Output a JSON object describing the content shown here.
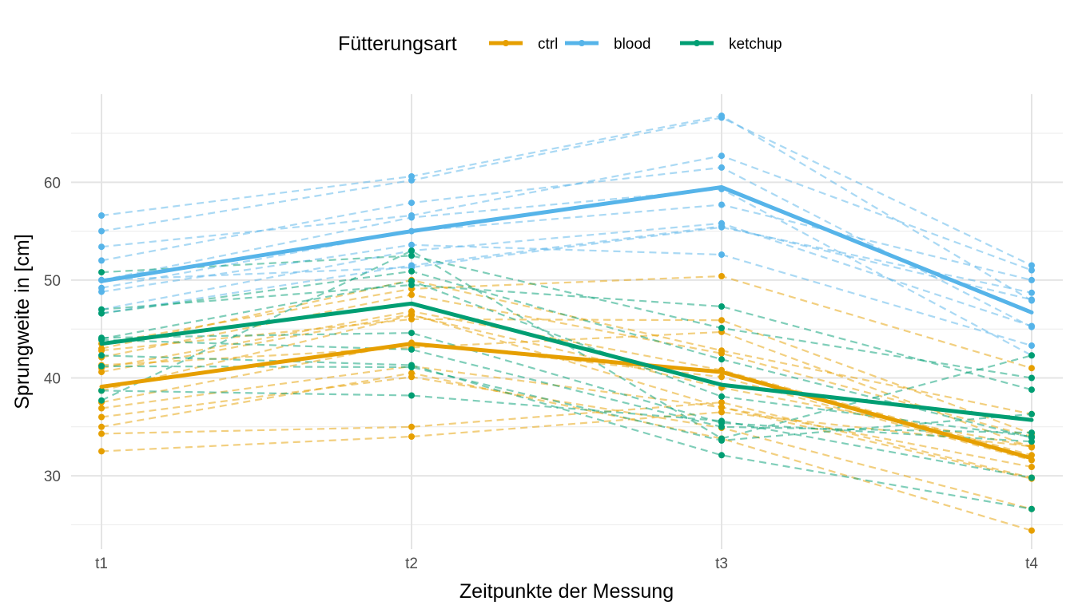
{
  "chart_data": {
    "type": "line",
    "title": "",
    "xlabel": "Zeitpunkte der Messung",
    "ylabel": "Sprungweite in [cm]",
    "categories": [
      "t1",
      "t2",
      "t3",
      "t4"
    ],
    "ylim": [
      22.5,
      69
    ],
    "yticks": [
      30,
      40,
      50,
      60
    ],
    "grid": true,
    "legend": {
      "title": "Fütterungsart",
      "position": "top",
      "items": [
        "ctrl",
        "blood",
        "ketchup"
      ]
    },
    "colors": {
      "ctrl": "#E69F00",
      "blood": "#56B4E9",
      "ketchup": "#009E73"
    },
    "series": [
      {
        "name": "ctrl",
        "values": [
          39.1,
          43.5,
          40.6,
          31.8
        ]
      },
      {
        "name": "blood",
        "values": [
          49.9,
          55.0,
          59.5,
          46.7
        ]
      },
      {
        "name": "ketchup",
        "values": [
          43.5,
          47.6,
          39.3,
          35.7
        ]
      }
    ],
    "individual_series": {
      "ctrl": [
        [
          32.5,
          34.0,
          36.5,
          33.0
        ],
        [
          34.3,
          35.0,
          37.5,
          29.8
        ],
        [
          35.0,
          40.5,
          33.8,
          24.4
        ],
        [
          36.0,
          40.1,
          34.9,
          26.6
        ],
        [
          36.9,
          41.2,
          37.0,
          30.9
        ],
        [
          37.5,
          43.6,
          40.1,
          31.6
        ],
        [
          38.7,
          46.4,
          39.0,
          33.0
        ],
        [
          41.0,
          46.8,
          40.8,
          32.1
        ],
        [
          42.1,
          48.5,
          42.5,
          34.0
        ],
        [
          43.0,
          50.0,
          42.8,
          36.3
        ],
        [
          43.5,
          49.1,
          50.4,
          41.0
        ],
        [
          42.8,
          46.0,
          45.9,
          34.3
        ],
        [
          40.6,
          46.5,
          37.0,
          29.7
        ],
        [
          41.3,
          43.1,
          44.7,
          32.9
        ]
      ],
      "blood": [
        [
          46.6,
          51.5,
          55.5,
          48.0
        ],
        [
          47.0,
          53.0,
          55.8,
          45.3
        ],
        [
          48.8,
          53.6,
          52.6,
          43.3
        ],
        [
          49.2,
          55.0,
          57.7,
          50.0
        ],
        [
          50.0,
          56.4,
          59.3,
          42.3
        ],
        [
          52.0,
          57.9,
          61.5,
          45.2
        ],
        [
          53.4,
          56.6,
          62.7,
          51.0
        ],
        [
          55.0,
          60.2,
          66.6,
          51.5
        ],
        [
          56.6,
          60.6,
          66.8,
          47.9
        ],
        [
          50.0,
          51.3,
          55.4,
          48.7
        ]
      ],
      "ketchup": [
        [
          37.7,
          53.0,
          33.8,
          42.3
        ],
        [
          38.7,
          38.2,
          35.6,
          29.8
        ],
        [
          41.2,
          41.1,
          33.6,
          36.3
        ],
        [
          42.3,
          41.3,
          32.1,
          26.6
        ],
        [
          44.1,
          44.6,
          35.4,
          33.5
        ],
        [
          43.9,
          42.9,
          35.0,
          34.4
        ],
        [
          46.6,
          50.9,
          41.9,
          33.9
        ],
        [
          47.0,
          49.5,
          47.3,
          38.8
        ],
        [
          50.8,
          52.5,
          45.1,
          40.0
        ],
        [
          44.0,
          49.9,
          38.1,
          34.0
        ]
      ]
    }
  }
}
